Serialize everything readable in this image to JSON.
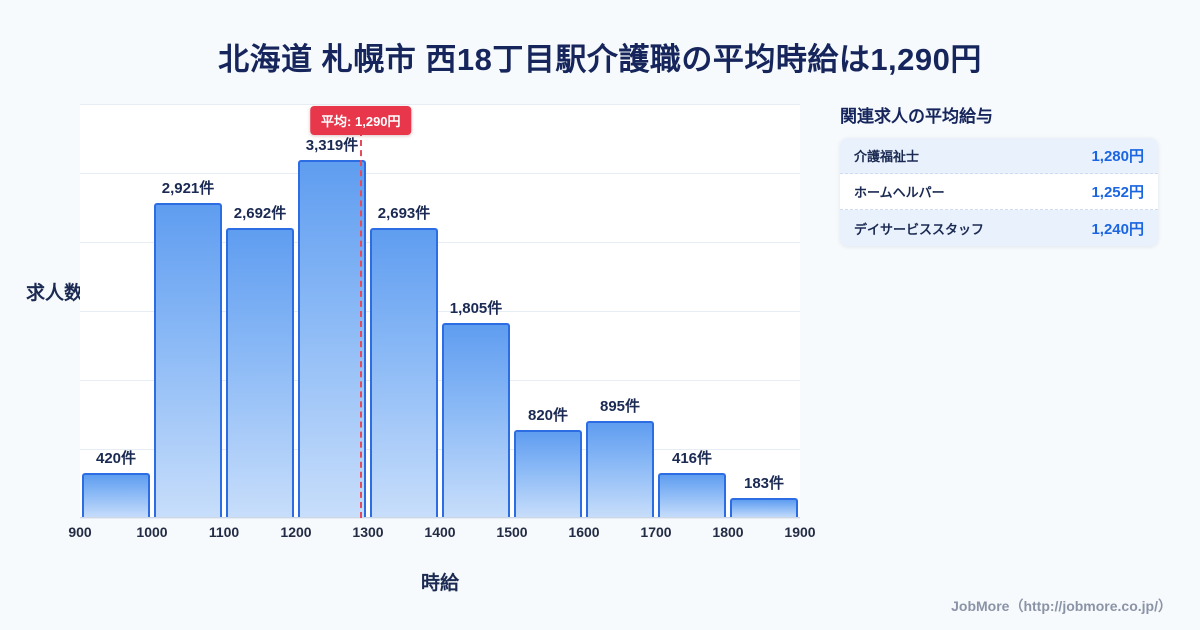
{
  "page": {
    "title": "北海道 札幌市 西18丁目駅介護職の平均時給は1,290円",
    "footer": "JobMore（http://jobmore.co.jp/）"
  },
  "chart_data": {
    "type": "bar",
    "title": "北海道 札幌市 西18丁目駅介護職の平均時給は1,290円",
    "xlabel": "時給",
    "ylabel": "求人数",
    "x_ticks": [
      900,
      1000,
      1100,
      1200,
      1300,
      1400,
      1500,
      1600,
      1700,
      1800,
      1900
    ],
    "values": [
      420,
      2921,
      2692,
      3319,
      2693,
      1805,
      820,
      895,
      416,
      183
    ],
    "bar_labels": [
      "420件",
      "2,921件",
      "2,692件",
      "3,319件",
      "2,693件",
      "1,805件",
      "820件",
      "895件",
      "416件",
      "183件"
    ],
    "average": {
      "value": 1290,
      "label": "平均: 1,290円"
    },
    "xlim": [
      900,
      1900
    ],
    "ylim": [
      0,
      3840
    ],
    "grid": true,
    "legend": false,
    "colors": {
      "bar_fill_top": "#5f9df0",
      "bar_fill_bottom": "#c8defb",
      "bar_border": "#2d6de3",
      "average_line": "#e34b5f",
      "average_badge_bg": "#e8374a",
      "title_text": "#16265c"
    }
  },
  "related": {
    "title": "関連求人の平均給与",
    "rows": [
      {
        "label": "介護福祉士",
        "value": "1,280円"
      },
      {
        "label": "ホームヘルパー",
        "value": "1,252円"
      },
      {
        "label": "デイサービススタッフ",
        "value": "1,240円"
      }
    ],
    "value_color": "#1b66e0",
    "card_bg": "#e9f1fc"
  }
}
